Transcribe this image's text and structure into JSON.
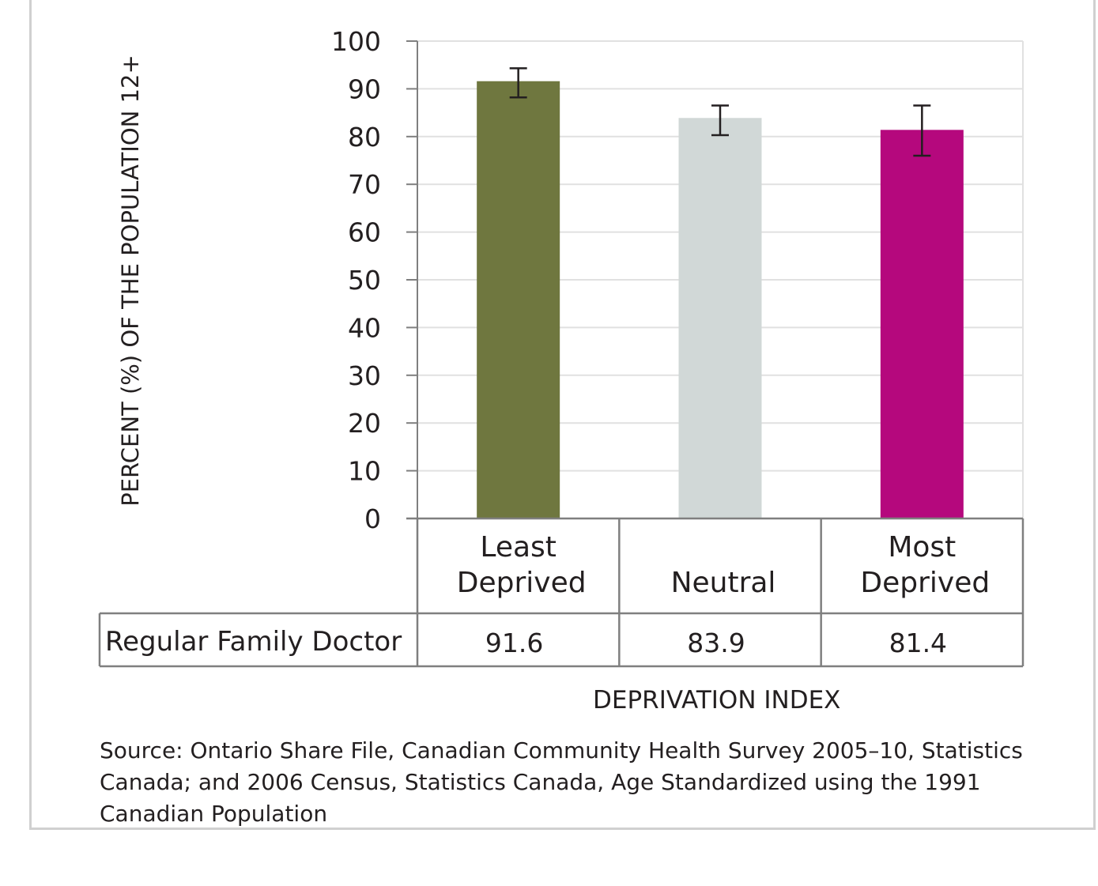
{
  "chart_data": {
    "type": "bar",
    "categories": [
      {
        "line1": "Least",
        "line2": "Deprived"
      },
      {
        "line1": "",
        "line2": "Neutral"
      },
      {
        "line1": "Most",
        "line2": "Deprived"
      }
    ],
    "series": [
      {
        "name": "Regular Family  Doctor",
        "values": [
          91.6,
          83.9,
          81.4
        ],
        "value_labels": [
          "91.6",
          "83.9",
          "81.4"
        ],
        "error_low": [
          88.2,
          80.3,
          76.0
        ],
        "error_high": [
          94.3,
          86.5,
          86.5
        ],
        "colors": [
          "#6f773f",
          "#d1d8d7",
          "#b5087d"
        ]
      }
    ],
    "ylabel": "PERCENT (%) OF THE POPULATION 12+",
    "xlabel": "DEPRIVATION INDEX",
    "ylim": [
      0,
      100
    ],
    "yticks": [
      0,
      10,
      20,
      30,
      40,
      50,
      60,
      70,
      80,
      90,
      100
    ],
    "grid": true
  },
  "source_lines": [
    "Source: Ontario Share File, Canadian Community Health Survey 2005–10, Statistics",
    "Canada; and 2006 Census, Statistics Canada, Age Standardized using the 1991",
    "Canadian Population"
  ]
}
